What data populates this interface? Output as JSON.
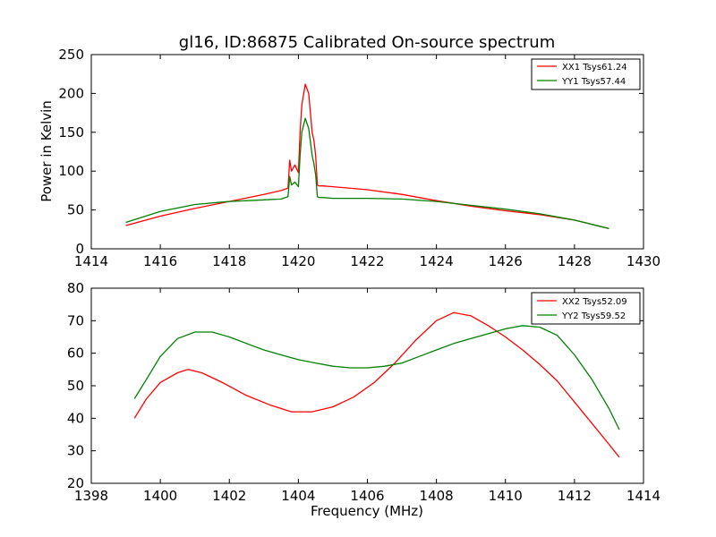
{
  "chart_data": [
    {
      "type": "line",
      "title": "gl16, ID:86875 Calibrated On-source spectrum",
      "xlabel": "",
      "ylabel": "Power in Kelvin",
      "xlim": [
        1414,
        1430
      ],
      "ylim": [
        0,
        250
      ],
      "xticks": [
        "1414",
        "1416",
        "1418",
        "1420",
        "1422",
        "1424",
        "1426",
        "1428",
        "1430"
      ],
      "yticks": [
        "0",
        "50",
        "100",
        "150",
        "200",
        "250"
      ],
      "legend_position": "top-right",
      "series": [
        {
          "name": "XX1 Tsys61.24",
          "color": "#ff0000",
          "x": [
            1415,
            1416,
            1417,
            1418,
            1419,
            1419.5,
            1419.7,
            1419.75,
            1419.8,
            1419.9,
            1420.0,
            1420.05,
            1420.1,
            1420.2,
            1420.3,
            1420.4,
            1420.45,
            1420.5,
            1420.55,
            1420.6,
            1420.7,
            1421,
            1422,
            1423,
            1424,
            1425,
            1426,
            1427,
            1428,
            1429
          ],
          "y": [
            30,
            42,
            52,
            61,
            70,
            75,
            78,
            114,
            100,
            108,
            98,
            150,
            185,
            212,
            200,
            150,
            140,
            120,
            82,
            81,
            81,
            80,
            76,
            70,
            62,
            55,
            49,
            44,
            37,
            26
          ]
        },
        {
          "name": "YY1 Tsys57.44",
          "color": "#008000",
          "x": [
            1415,
            1416,
            1417,
            1418,
            1419,
            1419.5,
            1419.7,
            1419.75,
            1419.8,
            1419.9,
            1420.0,
            1420.05,
            1420.1,
            1420.2,
            1420.3,
            1420.4,
            1420.45,
            1420.5,
            1420.55,
            1420.6,
            1420.7,
            1421,
            1422,
            1423,
            1424,
            1425,
            1426,
            1427,
            1428,
            1429
          ],
          "y": [
            34,
            48,
            57,
            61,
            63,
            64,
            67,
            93,
            82,
            86,
            80,
            120,
            150,
            168,
            155,
            120,
            110,
            95,
            67,
            66,
            66,
            65,
            65,
            64,
            61,
            56,
            51,
            45,
            37,
            26
          ]
        }
      ]
    },
    {
      "type": "line",
      "title": "",
      "xlabel": "Frequency (MHz)",
      "ylabel": "",
      "xlim": [
        1398,
        1414
      ],
      "ylim": [
        20,
        80
      ],
      "xticks": [
        "1398",
        "1400",
        "1402",
        "1404",
        "1406",
        "1408",
        "1410",
        "1412",
        "1414"
      ],
      "yticks": [
        "20",
        "30",
        "40",
        "50",
        "60",
        "70",
        "80"
      ],
      "legend_position": "top-right",
      "series": [
        {
          "name": "XX2 Tsys52.09",
          "color": "#ff0000",
          "x": [
            1399.25,
            1399.6,
            1400,
            1400.5,
            1400.8,
            1401.2,
            1401.8,
            1402.5,
            1403.2,
            1403.8,
            1404.4,
            1405,
            1405.6,
            1406.2,
            1406.8,
            1407.4,
            1408,
            1408.5,
            1409,
            1409.5,
            1410,
            1410.5,
            1411,
            1411.5,
            1412,
            1412.5,
            1413,
            1413.3
          ],
          "y": [
            40,
            46,
            51,
            54,
            55,
            54,
            51,
            47,
            44,
            42,
            42,
            43.5,
            46.5,
            51,
            57,
            64,
            70,
            72.5,
            71.5,
            68.5,
            65,
            61,
            56.5,
            51.5,
            45,
            38.5,
            32,
            28
          ]
        },
        {
          "name": "YY2 Tsys59.52",
          "color": "#008000",
          "x": [
            1399.25,
            1399.6,
            1400,
            1400.5,
            1401,
            1401.5,
            1402,
            1402.5,
            1403,
            1403.5,
            1404,
            1404.5,
            1405,
            1405.5,
            1406,
            1406.5,
            1407,
            1407.5,
            1408,
            1408.5,
            1409,
            1409.5,
            1410,
            1410.5,
            1411,
            1411.5,
            1412,
            1412.5,
            1413,
            1413.3
          ],
          "y": [
            46,
            52,
            59,
            64.5,
            66.5,
            66.5,
            65,
            63,
            61,
            59.5,
            58,
            57,
            56,
            55.5,
            55.5,
            56,
            57,
            59,
            61,
            63,
            64.5,
            66,
            67.5,
            68.5,
            68,
            65.5,
            59.5,
            52,
            43,
            36.5
          ]
        }
      ]
    }
  ]
}
